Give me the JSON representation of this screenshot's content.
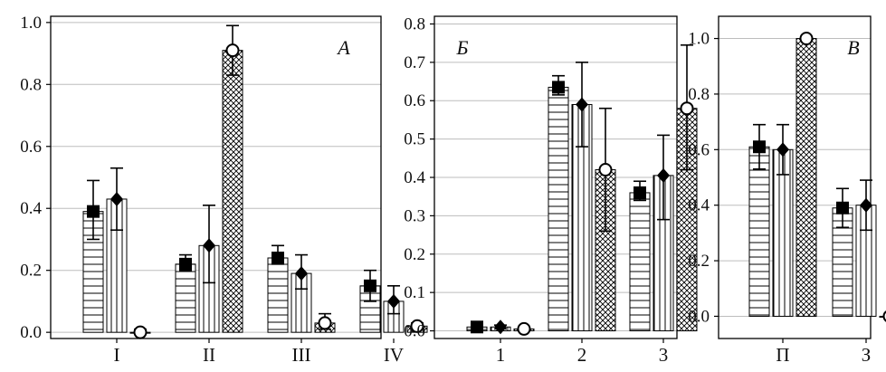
{
  "colors": {
    "ink": "#000000",
    "grid": "#bdbdbd",
    "background": "#ffffff"
  },
  "chart_data": [
    {
      "type": "bar",
      "panel_label": "А",
      "categories": [
        "I",
        "II",
        "III",
        "IV"
      ],
      "ylim": [
        -0.02,
        1.02
      ],
      "yticks": [
        "0.0",
        "0.2",
        "0.4",
        "0.6",
        "0.8",
        "1.0"
      ],
      "ytick_values": [
        0.0,
        0.2,
        0.4,
        0.6,
        0.8,
        1.0
      ],
      "grid": true,
      "series": [
        {
          "pattern": "horizontal-lines",
          "marker": "square",
          "values": [
            0.39,
            0.22,
            0.24,
            0.15
          ],
          "err_low": [
            0.3,
            0.2,
            0.22,
            0.1
          ],
          "err_high": [
            0.49,
            0.25,
            0.28,
            0.2
          ]
        },
        {
          "pattern": "vertical-lines",
          "marker": "diamond",
          "values": [
            0.43,
            0.28,
            0.19,
            0.1
          ],
          "err_low": [
            0.33,
            0.16,
            0.14,
            0.06
          ],
          "err_high": [
            0.53,
            0.41,
            0.25,
            0.15
          ]
        },
        {
          "pattern": "crosshatch",
          "marker": "circle",
          "values": [
            0.0,
            0.91,
            0.03,
            0.02
          ],
          "err_low": [
            0.0,
            0.83,
            0.01,
            0.01
          ],
          "err_high": [
            0.01,
            0.99,
            0.06,
            0.03
          ]
        }
      ]
    },
    {
      "type": "bar",
      "panel_label": "Б",
      "categories": [
        "1",
        "2",
        "3"
      ],
      "ylim": [
        -0.02,
        0.82
      ],
      "yticks": [
        "0.0",
        "0.1",
        "0.2",
        "0.3",
        "0.4",
        "0.5",
        "0.6",
        "0.7",
        "0.8"
      ],
      "ytick_values": [
        0.0,
        0.1,
        0.2,
        0.3,
        0.4,
        0.5,
        0.6,
        0.7,
        0.8
      ],
      "grid": true,
      "series": [
        {
          "pattern": "horizontal-lines",
          "marker": "square",
          "values": [
            0.01,
            0.635,
            0.36
          ],
          "err_low": [
            0.005,
            0.615,
            0.34
          ],
          "err_high": [
            0.015,
            0.665,
            0.39
          ]
        },
        {
          "pattern": "vertical-lines",
          "marker": "diamond",
          "values": [
            0.01,
            0.59,
            0.405
          ],
          "err_low": [
            0.005,
            0.48,
            0.29
          ],
          "err_high": [
            0.015,
            0.7,
            0.51
          ]
        },
        {
          "pattern": "crosshatch",
          "marker": "circle",
          "values": [
            0.005,
            0.42,
            0.58
          ],
          "err_low": [
            0.002,
            0.26,
            0.42
          ],
          "err_high": [
            0.008,
            0.58,
            0.745
          ]
        }
      ]
    },
    {
      "type": "bar",
      "panel_label": "В",
      "categories": [
        "П",
        "З"
      ],
      "ylim": [
        -0.08,
        1.08
      ],
      "yticks": [
        "0.0",
        "0.2",
        "0.4",
        "0.6",
        "0.8",
        "1.0"
      ],
      "ytick_values": [
        0.0,
        0.2,
        0.4,
        0.6,
        0.8,
        1.0
      ],
      "grid": true,
      "series": [
        {
          "pattern": "horizontal-lines",
          "marker": "square",
          "values": [
            0.61,
            0.39
          ],
          "err_low": [
            0.53,
            0.32
          ],
          "err_high": [
            0.69,
            0.46
          ]
        },
        {
          "pattern": "vertical-lines",
          "marker": "diamond",
          "values": [
            0.6,
            0.4
          ],
          "err_low": [
            0.51,
            0.31
          ],
          "err_high": [
            0.69,
            0.49
          ]
        },
        {
          "pattern": "crosshatch",
          "marker": "circle",
          "values": [
            1.0,
            0.0
          ],
          "err_low": [
            1.0,
            0.0
          ],
          "err_high": [
            1.0,
            0.0
          ]
        }
      ]
    }
  ]
}
